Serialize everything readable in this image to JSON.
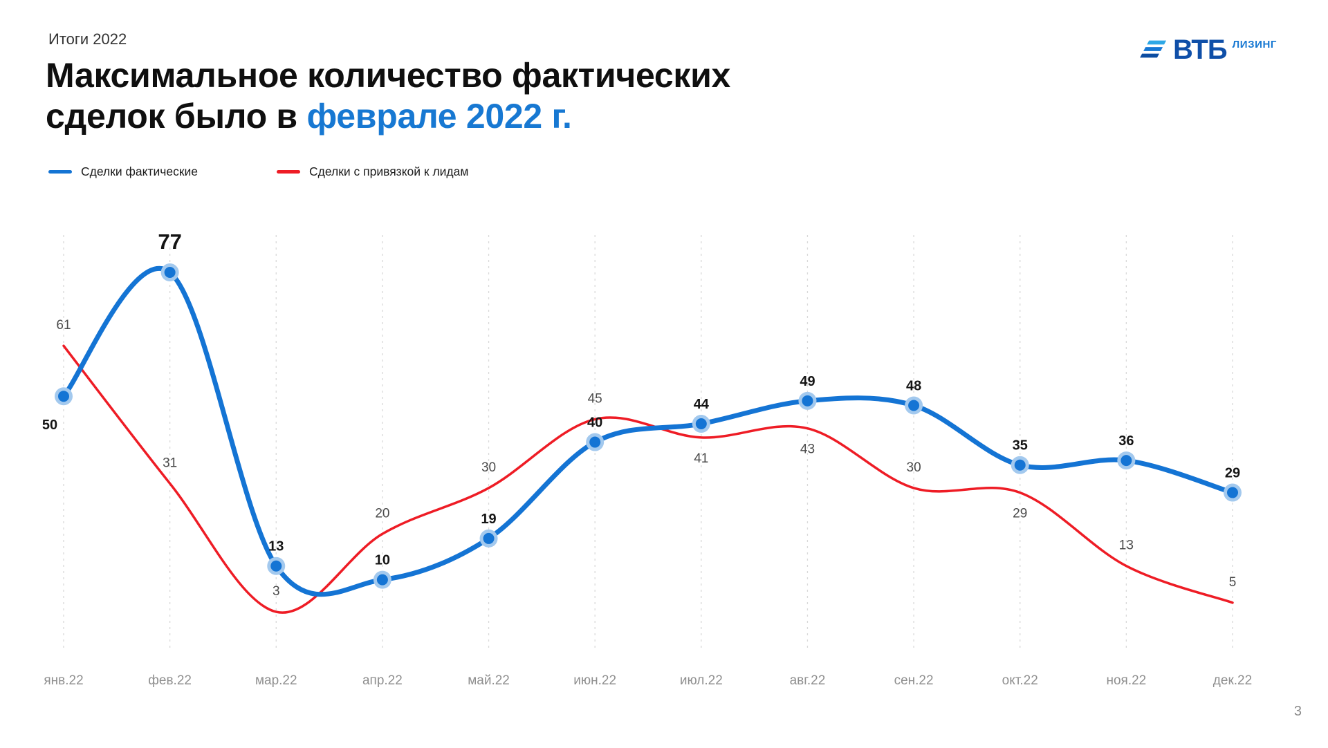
{
  "slide": {
    "kicker": "Итоги 2022",
    "title": {
      "line1": "Максимальное количество фактических",
      "line2_black": "сделок было в ",
      "line2_accent": "феврале 2022 г.",
      "accent_color": "#1778D2"
    },
    "page_number": "3"
  },
  "logo": {
    "brand": "ВТБ",
    "sub": "ЛИЗИНГ",
    "colors": {
      "brand": "#0F4FA8",
      "sub": "#1778D2",
      "flag": [
        "#2EA8E6",
        "#1577D4",
        "#0C4DA2"
      ]
    }
  },
  "legend": {
    "items": [
      {
        "label": "Сделки фактические",
        "color": "#1474D4"
      },
      {
        "label": "Сделки с привязкой к лидам",
        "color": "#EE1C25"
      }
    ]
  },
  "chart_data": {
    "type": "line",
    "categories": [
      "янв.22",
      "фев.22",
      "мар.22",
      "апр.22",
      "май.22",
      "июн.22",
      "июл.22",
      "авг.22",
      "сен.22",
      "окт.22",
      "ноя.22",
      "дек.22"
    ],
    "series": [
      {
        "name": "Сделки фактические",
        "color": "#1474D4",
        "marker_halo": "#A3C9EE",
        "markers": true,
        "line_width": 7,
        "values": [
          50,
          77,
          13,
          10,
          19,
          40,
          44,
          49,
          48,
          35,
          36,
          29
        ],
        "label_positions": [
          "below-left",
          "above",
          "above",
          "above",
          "above",
          "above",
          "above",
          "above",
          "above",
          "above",
          "above",
          "above"
        ],
        "label_style": {
          "color": "#141414",
          "weight": "bold",
          "size": 20
        }
      },
      {
        "name": "Сделки с привязкой к лидам",
        "color": "#EE1C25",
        "markers": false,
        "line_width": 3.5,
        "values": [
          61,
          31,
          3,
          20,
          30,
          45,
          41,
          43,
          30,
          29,
          13,
          5
        ],
        "label_positions": [
          "above",
          "above",
          "above",
          "above",
          "above",
          "above",
          "below",
          "below",
          "above",
          "below",
          "above",
          "above"
        ],
        "label_style": {
          "color": "#4A4A4A",
          "weight": "normal",
          "size": 19
        }
      }
    ],
    "highlight": {
      "series": 0,
      "index": 1,
      "label_size": 31
    },
    "ylim": [
      0,
      80
    ],
    "grid": "vertical-dashed",
    "legend_position": "top-left",
    "smoothing": "catmull-rom",
    "title": "Максимальное количество фактических сделок было в феврале 2022 г."
  }
}
